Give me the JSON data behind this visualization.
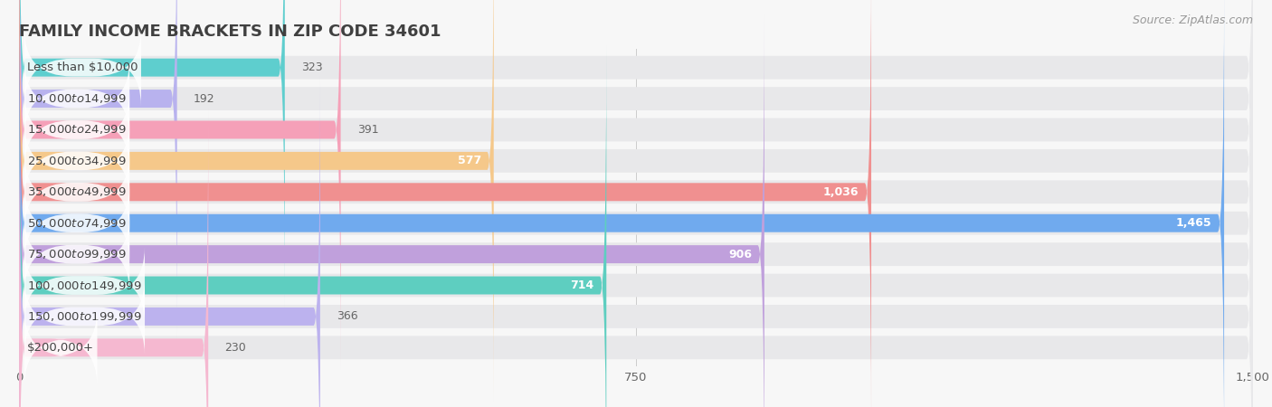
{
  "title": "FAMILY INCOME BRACKETS IN ZIP CODE 34601",
  "source": "Source: ZipAtlas.com",
  "categories": [
    "Less than $10,000",
    "$10,000 to $14,999",
    "$15,000 to $24,999",
    "$25,000 to $34,999",
    "$35,000 to $49,999",
    "$50,000 to $74,999",
    "$75,000 to $99,999",
    "$100,000 to $149,999",
    "$150,000 to $199,999",
    "$200,000+"
  ],
  "values": [
    323,
    192,
    391,
    577,
    1036,
    1465,
    906,
    714,
    366,
    230
  ],
  "bar_colors": [
    "#5ecece",
    "#b8b2ee",
    "#f5a0b8",
    "#f5c88a",
    "#f09090",
    "#70aaee",
    "#c0a0dc",
    "#5ecec0",
    "#bcb2ee",
    "#f5b8d0"
  ],
  "bar_bg_color": "#e8e8ea",
  "background_color": "#f7f7f7",
  "xlim": [
    0,
    1500
  ],
  "xticks": [
    0,
    750,
    1500
  ],
  "title_fontsize": 13,
  "label_fontsize": 9.5,
  "value_fontsize": 9,
  "source_fontsize": 9,
  "value_threshold": 500,
  "label_bg_color": "#ffffff"
}
